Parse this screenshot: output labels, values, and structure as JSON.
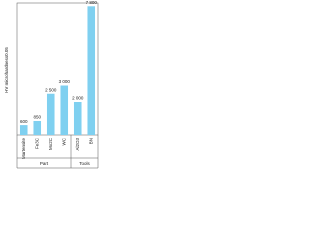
{
  "chart_data": {
    "type": "bar",
    "y_label": "HV microhardness0.05",
    "categories": [
      "Martensite",
      "Fe3C",
      "Mo2C",
      "WC",
      "Al2O3",
      "BN"
    ],
    "values": [
      600,
      850,
      2500,
      3000,
      2000,
      7800
    ],
    "value_labels": [
      "600",
      "850",
      "2 500",
      "3 000",
      "2 000",
      "7 800"
    ],
    "groups": [
      "Part",
      "Part",
      "Part",
      "Part",
      "Tools",
      "Tools"
    ],
    "color": "#7fd0f0",
    "ylim": [
      0,
      8000
    ]
  }
}
